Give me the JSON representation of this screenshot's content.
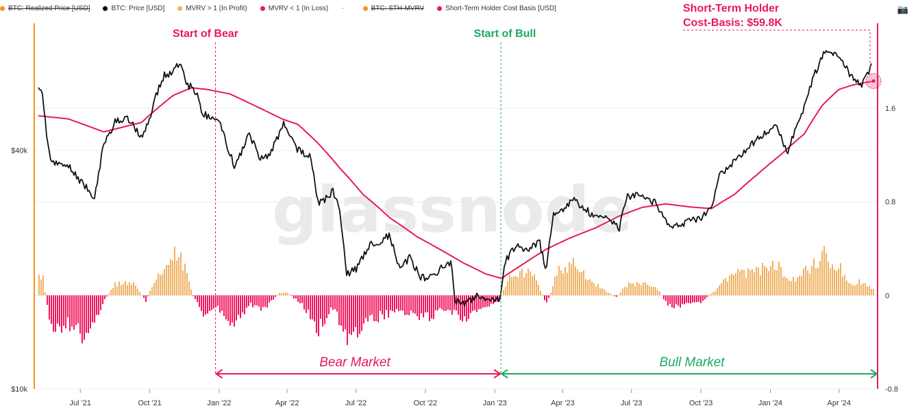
{
  "legend": [
    {
      "label": "BTC: Realized Price [USD]",
      "color": "#f7931a",
      "strike": true
    },
    {
      "label": "BTC: Price [USD]",
      "color": "#000000",
      "strike": false
    },
    {
      "label": "MVRV > 1 (In Profit)",
      "color": "#f0b060",
      "strike": false
    },
    {
      "label": "MVRV < 1 (In Loss)",
      "color": "#f2135a",
      "strike": false
    },
    {
      "label": "-",
      "color": "",
      "strike": false
    },
    {
      "label": "BTC: STH-MVRV",
      "color": "#f7931a",
      "strike": true
    },
    {
      "label": "Short-Term Holder Cost Basis [USD]",
      "color": "#e8185a",
      "strike": false
    }
  ],
  "camera_icon": "camera-icon",
  "watermark": "glassnode",
  "annotations": {
    "start_bear": "Start of Bear",
    "start_bull": "Start of Bull",
    "bear_market": "Bear Market",
    "bull_market": "Bull Market",
    "sth_line1": "Short-Term Holder",
    "sth_line2": "Cost-Basis: $59.8K"
  },
  "colors": {
    "price": "#111111",
    "sth_cost": "#e8185a",
    "profit": "#f0b060",
    "loss": "#f2135a",
    "bear": "#e8185a",
    "bull": "#1eaa5e",
    "left_axis": "#f7931a",
    "right_axis": "#e8185a"
  },
  "chart_data": {
    "type": "line",
    "x_axis": {
      "ticks": [
        "Jul '21",
        "Oct '21",
        "Jan '22",
        "Apr '22",
        "Jul '22",
        "Oct '22",
        "Jan '23",
        "Apr '23",
        "Jul '23",
        "Oct '23",
        "Jan '24",
        "Apr '24"
      ],
      "range": [
        "2021-05-01",
        "2024-05-22"
      ]
    },
    "y_left": {
      "scale": "log",
      "ticks": [
        "$10k",
        "$40k"
      ],
      "range": [
        10000,
        85000
      ]
    },
    "y_right": {
      "ticks": [
        "1.6",
        "0.8",
        "0",
        "-0.8"
      ],
      "range": [
        -0.8,
        2.35
      ]
    },
    "events": {
      "start_of_bear": "2021-12-27",
      "start_of_bull": "2023-01-09",
      "sth_cost_basis_now": 59800
    },
    "price_x": [
      "2021-05-01",
      "2021-05-10",
      "2021-05-20",
      "2021-06-01",
      "2021-06-15",
      "2021-07-01",
      "2021-07-20",
      "2021-08-01",
      "2021-08-15",
      "2021-09-01",
      "2021-09-07",
      "2021-09-21",
      "2021-10-01",
      "2021-10-10",
      "2021-10-20",
      "2021-11-01",
      "2021-11-10",
      "2021-11-20",
      "2021-12-01",
      "2021-12-10",
      "2021-12-20",
      "2022-01-01",
      "2022-01-10",
      "2022-01-22",
      "2022-02-10",
      "2022-02-24",
      "2022-03-10",
      "2022-03-28",
      "2022-04-15",
      "2022-05-01",
      "2022-05-12",
      "2022-05-20",
      "2022-06-01",
      "2022-06-10",
      "2022-06-18",
      "2022-07-01",
      "2022-07-20",
      "2022-08-01",
      "2022-08-14",
      "2022-08-28",
      "2022-09-10",
      "2022-09-25",
      "2022-10-10",
      "2022-10-25",
      "2022-11-05",
      "2022-11-09",
      "2022-11-20",
      "2022-12-10",
      "2022-12-25",
      "2023-01-08",
      "2023-01-14",
      "2023-01-30",
      "2023-02-15",
      "2023-03-01",
      "2023-03-10",
      "2023-03-20",
      "2023-04-01",
      "2023-04-14",
      "2023-04-30",
      "2023-05-15",
      "2023-06-01",
      "2023-06-15",
      "2023-06-25",
      "2023-07-13",
      "2023-08-01",
      "2023-08-17",
      "2023-09-01",
      "2023-09-15",
      "2023-10-01",
      "2023-10-16",
      "2023-10-24",
      "2023-11-10",
      "2023-12-05",
      "2023-12-20",
      "2024-01-10",
      "2024-01-23",
      "2024-02-10",
      "2024-02-28",
      "2024-03-14",
      "2024-04-01",
      "2024-04-13",
      "2024-05-01",
      "2024-05-15",
      "2024-05-22"
    ],
    "price_y": [
      57000,
      58000,
      39000,
      36500,
      37000,
      33500,
      30500,
      41000,
      47000,
      48500,
      46500,
      43000,
      48000,
      55000,
      62000,
      62500,
      67500,
      58500,
      56500,
      49500,
      48500,
      47000,
      42000,
      36000,
      44000,
      38000,
      39000,
      47000,
      40000,
      38500,
      29500,
      30000,
      31500,
      28000,
      19500,
      20000,
      23000,
      23500,
      24400,
      20000,
      21500,
      19000,
      19200,
      20500,
      20800,
      16800,
      16300,
      17200,
      16800,
      17000,
      21000,
      23000,
      22500,
      23500,
      20000,
      28000,
      28000,
      30400,
      28500,
      27000,
      27000,
      25500,
      30500,
      31000,
      29500,
      26000,
      26000,
      26500,
      27000,
      28500,
      34500,
      37000,
      41000,
      43500,
      46000,
      39500,
      48000,
      62000,
      71500,
      69500,
      63000,
      58000,
      66000,
      61500
    ],
    "sth_x": [
      "2021-05-01",
      "2021-06-15",
      "2021-08-01",
      "2021-09-20",
      "2021-11-01",
      "2021-11-25",
      "2021-12-15",
      "2022-01-15",
      "2022-02-20",
      "2022-03-25",
      "2022-04-15",
      "2022-05-10",
      "2022-06-10",
      "2022-07-10",
      "2022-08-15",
      "2022-09-20",
      "2022-10-20",
      "2022-11-20",
      "2022-12-20",
      "2023-01-10",
      "2023-02-10",
      "2023-03-10",
      "2023-04-10",
      "2023-05-15",
      "2023-06-15",
      "2023-07-15",
      "2023-08-15",
      "2023-09-15",
      "2023-10-15",
      "2023-11-15",
      "2023-12-15",
      "2024-01-15",
      "2024-02-15",
      "2024-03-10",
      "2024-04-01",
      "2024-04-20",
      "2024-05-10",
      "2024-05-22"
    ],
    "sth_y": [
      49000,
      48000,
      44500,
      47000,
      55000,
      57500,
      57000,
      55500,
      51500,
      48000,
      46500,
      42000,
      36000,
      31000,
      27000,
      24200,
      22500,
      20800,
      19500,
      19000,
      20800,
      22500,
      24000,
      25500,
      27300,
      28700,
      29300,
      28800,
      28500,
      31000,
      34800,
      39000,
      44000,
      52000,
      57000,
      58500,
      59500,
      59800
    ],
    "mvrv_x": [
      "2021-05-01",
      "2021-05-12",
      "2021-05-22",
      "2021-06-15",
      "2021-07-01",
      "2021-07-20",
      "2021-08-05",
      "2021-08-15",
      "2021-09-05",
      "2021-09-15",
      "2021-09-25",
      "2021-10-05",
      "2021-10-20",
      "2021-11-01",
      "2021-11-15",
      "2021-11-26",
      "2021-12-10",
      "2021-12-27",
      "2022-01-20",
      "2022-02-10",
      "2022-03-01",
      "2022-03-20",
      "2022-04-01",
      "2022-04-20",
      "2022-05-12",
      "2022-06-01",
      "2022-06-18",
      "2022-07-05",
      "2022-07-25",
      "2022-08-15",
      "2022-09-10",
      "2022-10-01",
      "2022-10-25",
      "2022-11-10",
      "2022-11-20",
      "2022-12-15",
      "2023-01-05",
      "2023-01-20",
      "2023-02-01",
      "2023-02-20",
      "2023-03-10",
      "2023-03-25",
      "2023-04-15",
      "2023-05-10",
      "2023-06-10",
      "2023-06-25",
      "2023-07-15",
      "2023-08-05",
      "2023-08-18",
      "2023-09-10",
      "2023-10-01",
      "2023-10-20",
      "2023-11-10",
      "2023-12-10",
      "2024-01-10",
      "2024-01-23",
      "2024-02-10",
      "2024-03-01",
      "2024-03-12",
      "2024-04-01",
      "2024-04-17",
      "2024-05-01",
      "2024-05-15",
      "2024-05-22"
    ],
    "mvrv_y": [
      0.22,
      0.15,
      -0.3,
      -0.25,
      -0.35,
      -0.2,
      0.0,
      0.1,
      0.12,
      0.05,
      -0.05,
      0.1,
      0.25,
      0.35,
      0.28,
      0.0,
      -0.15,
      -0.1,
      -0.25,
      -0.08,
      -0.12,
      0.02,
      0.02,
      -0.08,
      -0.3,
      -0.1,
      -0.38,
      -0.3,
      -0.2,
      -0.15,
      -0.15,
      -0.2,
      -0.12,
      -0.15,
      -0.2,
      -0.1,
      -0.05,
      0.15,
      0.2,
      0.2,
      -0.08,
      0.22,
      0.28,
      0.12,
      -0.02,
      0.1,
      0.1,
      0.05,
      -0.1,
      -0.08,
      -0.06,
      0.05,
      0.18,
      0.2,
      0.28,
      0.12,
      0.18,
      0.28,
      0.35,
      0.25,
      0.1,
      0.12,
      0.05,
      0.02
    ]
  }
}
